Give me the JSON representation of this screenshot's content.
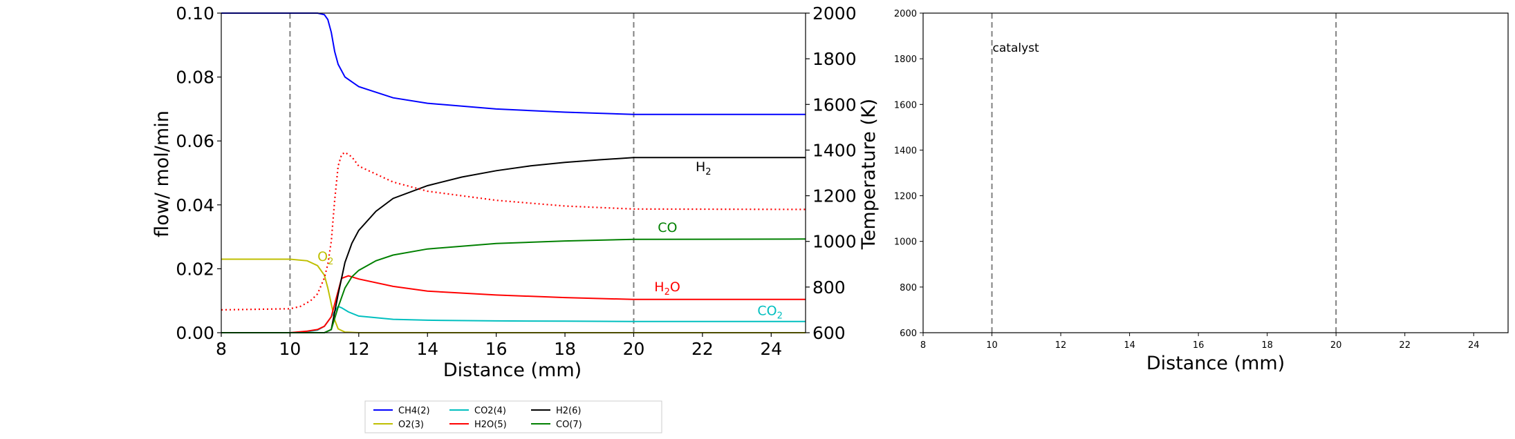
{
  "chart_data": [
    {
      "type": "line",
      "xlabel": "Distance (mm)",
      "ylabel": "flow/ mol/min",
      "ylabel_right": "Temperature (K)",
      "xlim": [
        8,
        25
      ],
      "ylim": [
        0,
        0.1
      ],
      "ylim_right": [
        600,
        2000
      ],
      "x_ticks": [
        "8",
        "10",
        "12",
        "14",
        "16",
        "18",
        "20",
        "22",
        "24"
      ],
      "y_ticks": [
        "0.00",
        "0.02",
        "0.04",
        "0.06",
        "0.08",
        "0.10"
      ],
      "y_right_ticks": [
        "600",
        "800",
        "1000",
        "1200",
        "1400",
        "1600",
        "1800",
        "2000"
      ],
      "vlines": [
        10,
        20
      ],
      "grid": false,
      "series": [
        {
          "name": "CH4(2)",
          "color": "#0000ff",
          "style": "solid",
          "axis": "left",
          "x": [
            8,
            10,
            10.5,
            10.8,
            11.0,
            11.1,
            11.2,
            11.3,
            11.4,
            11.6,
            12,
            13,
            14,
            16,
            18,
            20,
            25
          ],
          "y": [
            0.1,
            0.1,
            0.1,
            0.1,
            0.0995,
            0.098,
            0.094,
            0.088,
            0.084,
            0.08,
            0.077,
            0.0735,
            0.0718,
            0.07,
            0.069,
            0.0683,
            0.0683
          ]
        },
        {
          "name": "O2(3)",
          "color": "#bfbf00",
          "style": "solid",
          "axis": "left",
          "x": [
            8,
            10,
            10.5,
            10.8,
            11.0,
            11.1,
            11.2,
            11.3,
            11.4,
            11.6,
            12,
            25
          ],
          "y": [
            0.023,
            0.023,
            0.0225,
            0.021,
            0.018,
            0.014,
            0.009,
            0.004,
            0.0012,
            0.0002,
            0.0,
            0.0
          ]
        },
        {
          "name": "CO2(4)",
          "color": "#00bfbf",
          "style": "solid",
          "axis": "left",
          "x": [
            8,
            10,
            10.5,
            10.8,
            11.0,
            11.2,
            11.4,
            11.5,
            11.7,
            12,
            13,
            14,
            16,
            18,
            20,
            25
          ],
          "y": [
            0.0,
            0.0,
            0.0003,
            0.0008,
            0.002,
            0.005,
            0.0082,
            0.0078,
            0.0065,
            0.0052,
            0.0042,
            0.0039,
            0.0037,
            0.0036,
            0.0035,
            0.0035
          ]
        },
        {
          "name": "H2O(5)",
          "color": "#ff0000",
          "style": "solid",
          "axis": "left",
          "x": [
            8,
            10,
            10.5,
            10.8,
            11.0,
            11.2,
            11.35,
            11.5,
            11.7,
            12,
            13,
            14,
            16,
            18,
            20,
            25
          ],
          "y": [
            0.0,
            0.0,
            0.0005,
            0.001,
            0.002,
            0.005,
            0.011,
            0.017,
            0.0178,
            0.0168,
            0.0145,
            0.013,
            0.0118,
            0.011,
            0.0104,
            0.0104
          ]
        },
        {
          "name": "H2(6)",
          "color": "#000000",
          "style": "solid",
          "axis": "left",
          "x": [
            8,
            10,
            11.0,
            11.2,
            11.4,
            11.6,
            11.8,
            12,
            12.5,
            13,
            14,
            15,
            16,
            17,
            18,
            19,
            20,
            25
          ],
          "y": [
            0.0,
            0.0,
            0.0,
            0.001,
            0.012,
            0.022,
            0.028,
            0.032,
            0.038,
            0.042,
            0.046,
            0.0487,
            0.0507,
            0.0522,
            0.0533,
            0.0541,
            0.0548,
            0.0548
          ]
        },
        {
          "name": "CO(7)",
          "color": "#008000",
          "style": "solid",
          "axis": "left",
          "x": [
            8,
            10,
            11.0,
            11.2,
            11.4,
            11.6,
            11.8,
            12,
            12.5,
            13,
            14,
            16,
            18,
            20,
            25
          ],
          "y": [
            0.0,
            0.0,
            0.0,
            0.001,
            0.008,
            0.014,
            0.0175,
            0.0195,
            0.0225,
            0.0243,
            0.0262,
            0.0279,
            0.0287,
            0.0292,
            0.0293
          ]
        },
        {
          "name": "",
          "color": "#ff0000",
          "style": "dotted",
          "axis": "right",
          "x": [
            8,
            10,
            10.3,
            10.6,
            10.8,
            11.0,
            11.1,
            11.2,
            11.3,
            11.4,
            11.5,
            11.6,
            11.8,
            12,
            12.5,
            13,
            14,
            16,
            18,
            20,
            25
          ],
          "y": [
            700,
            705,
            715,
            740,
            770,
            840,
            900,
            1000,
            1180,
            1330,
            1380,
            1390,
            1370,
            1330,
            1295,
            1260,
            1220,
            1180,
            1155,
            1142,
            1140
          ]
        }
      ],
      "annotations": [
        {
          "text": "H",
          "sub": "2",
          "x": 21.8,
          "y": 0.0505,
          "color": "#000000"
        },
        {
          "text": "CO",
          "sub": "",
          "x": 20.7,
          "y": 0.0315,
          "color": "#008000"
        },
        {
          "text": "H",
          "sub": "2",
          "post": "O",
          "x": 20.6,
          "y": 0.013,
          "color": "#ff0000"
        },
        {
          "text": "CO",
          "sub": "2",
          "x": 23.6,
          "y": 0.0055,
          "color": "#00bfbf"
        },
        {
          "text": "O",
          "sub": "2",
          "x": 10.8,
          "y": 0.0225,
          "color": "#bfbf00"
        }
      ],
      "legend": {
        "placement": "below",
        "entries": [
          "CH4(2)",
          "O2(3)",
          "CO2(4)",
          "H2O(5)",
          "H2(6)",
          "CO(7)"
        ]
      }
    },
    {
      "type": "line",
      "xlabel": "Distance (mm)",
      "ylabel": "",
      "xlim": [
        8,
        25
      ],
      "ylim": [
        600,
        2000
      ],
      "x_ticks": [
        "8",
        "10",
        "12",
        "14",
        "16",
        "18",
        "20",
        "22",
        "24"
      ],
      "y_ticks": [
        "600",
        "800",
        "1000",
        "1200",
        "1400",
        "1600",
        "1800",
        "2000"
      ],
      "vlines": [
        10,
        20
      ],
      "grid": false,
      "annotations": [
        {
          "text": "catalyst",
          "x": 10.0,
          "y": 1830
        }
      ],
      "series": []
    }
  ]
}
